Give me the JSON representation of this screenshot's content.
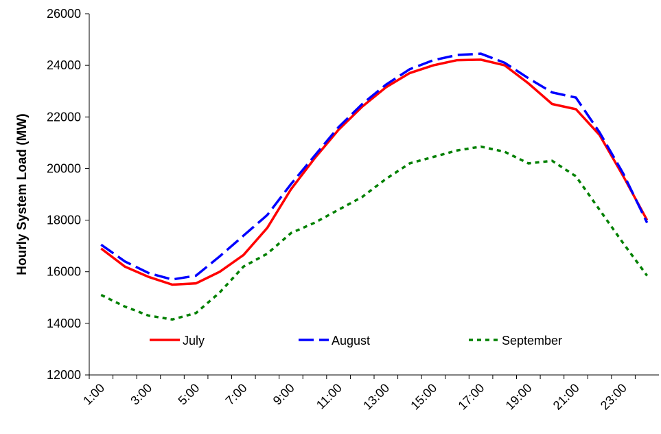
{
  "chart_data": {
    "type": "line",
    "y_label": "Hourly System Load (MW)",
    "categories": [
      "1:00",
      null,
      "3:00",
      null,
      "5:00",
      null,
      "7:00",
      null,
      "9:00",
      null,
      "11:00",
      null,
      "13:00",
      null,
      "15:00",
      null,
      "17:00",
      null,
      "19:00",
      null,
      "21:00",
      null,
      "23:00",
      null
    ],
    "series": [
      {
        "name": "July",
        "color": "#ff0000",
        "line_style": "solid",
        "values": [
          16900,
          16200,
          15800,
          15500,
          15550,
          16000,
          16650,
          17700,
          19200,
          20400,
          21500,
          22400,
          23150,
          23700,
          24000,
          24200,
          24220,
          24000,
          23300,
          22500,
          22300,
          21300,
          19700,
          18000
        ]
      },
      {
        "name": "August",
        "color": "#0000ff",
        "line_style": "dashed",
        "values": [
          17050,
          16400,
          15950,
          15700,
          15850,
          16600,
          17400,
          18200,
          19400,
          20500,
          21600,
          22500,
          23250,
          23850,
          24200,
          24400,
          24450,
          24100,
          23500,
          22950,
          22750,
          21400,
          19800,
          17900
        ]
      },
      {
        "name": "September",
        "color": "#008000",
        "line_style": "dotted",
        "values": [
          15100,
          14650,
          14300,
          14150,
          14400,
          15200,
          16200,
          16700,
          17500,
          17900,
          18400,
          18900,
          19600,
          20200,
          20450,
          20700,
          20850,
          20650,
          20200,
          20300,
          19700,
          18400,
          17100,
          15850
        ]
      }
    ],
    "ylim": [
      12000,
      26000
    ],
    "yticks": [
      12000,
      14000,
      16000,
      18000,
      20000,
      22000,
      24000,
      26000
    ],
    "grid": false,
    "legend": "bottom"
  }
}
